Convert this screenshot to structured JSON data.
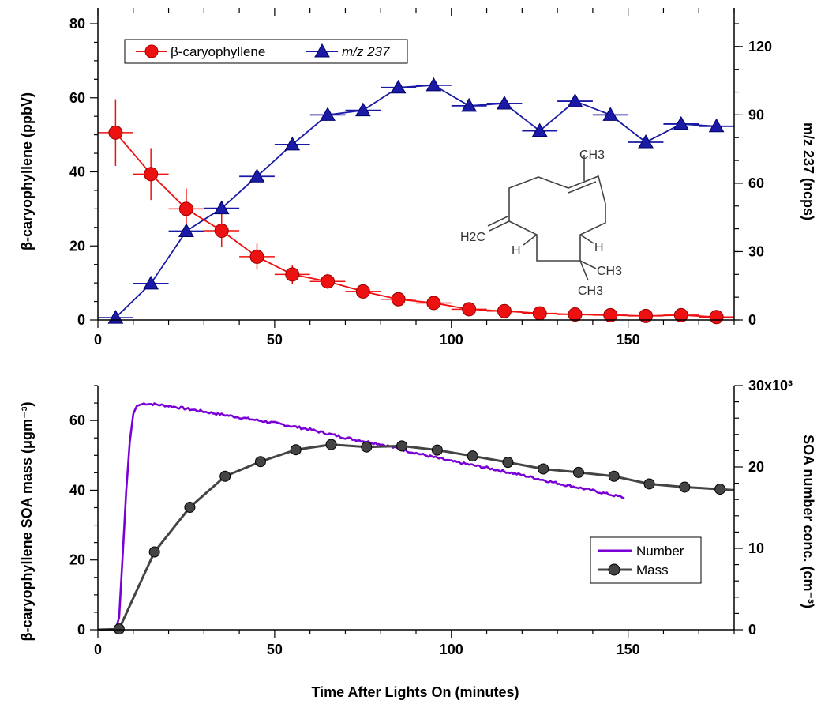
{
  "chart_data": [
    {
      "type": "line",
      "panel": "top",
      "xlim": [
        0,
        180
      ],
      "ylim_left": [
        0,
        80
      ],
      "ylim_right": [
        0,
        130
      ],
      "x_ticks": [
        "0",
        "50",
        "100",
        "150"
      ],
      "y_ticks_left": [
        "0",
        "20",
        "40",
        "60",
        "80"
      ],
      "y_ticks_right": [
        "0",
        "30",
        "60",
        "90",
        "120"
      ],
      "ylabel_left": "β-caryophyllene (ppbV)",
      "ylabel_right": "m/z 237 (ncps)",
      "legend_placement": "top-left",
      "series": [
        {
          "name": "β-caryophyllene",
          "axis": "left",
          "color": "#ee1111",
          "marker": "circle",
          "x": [
            5,
            15,
            25,
            35,
            45,
            55,
            65,
            75,
            85,
            95,
            105,
            115,
            125,
            135,
            145,
            155,
            165,
            175
          ],
          "y": [
            50.6,
            39.4,
            30.0,
            24.1,
            17.1,
            12.3,
            10.4,
            7.7,
            5.6,
            4.6,
            2.9,
            2.4,
            1.8,
            1.5,
            1.3,
            1.1,
            1.3,
            0.8
          ],
          "y_err": [
            9.0,
            7.0,
            5.5,
            4.5,
            3.5,
            2.5,
            2.0,
            1.5,
            1.2,
            1.0,
            0.8,
            0.7,
            0.6,
            0.5,
            0.5,
            0.5,
            0.5,
            0.5
          ],
          "x_err": 5
        },
        {
          "name": "m/z 237",
          "axis": "right",
          "color": "#1a1aa6",
          "marker": "triangle",
          "x": [
            5,
            15,
            25,
            35,
            45,
            55,
            65,
            75,
            85,
            95,
            105,
            115,
            125,
            135,
            145,
            155,
            165,
            175
          ],
          "y": [
            1,
            16,
            39,
            49,
            63,
            77,
            90,
            92,
            102,
            103,
            94,
            95,
            83,
            96,
            90,
            78,
            86,
            85
          ],
          "x_err": 5
        }
      ],
      "structure_labels": {
        "ch3_top": "CH3",
        "h2c": "H2C",
        "h_left": "H",
        "h_right": "H",
        "ch3_mid": "CH3",
        "ch3_bottom": "CH3"
      }
    },
    {
      "type": "line",
      "panel": "bottom",
      "xlim": [
        0,
        180
      ],
      "ylim_left": [
        0,
        70
      ],
      "ylim_right": [
        0,
        30000
      ],
      "x_ticks": [
        "0",
        "50",
        "100",
        "150"
      ],
      "y_ticks_left": [
        "0",
        "20",
        "40",
        "60"
      ],
      "y_ticks_right": [
        "0",
        "10",
        "20",
        "30x10³"
      ],
      "xlabel": "Time After Lights On (minutes)",
      "ylabel_left": "β-caryophyllene SOA mass (μgm⁻³)",
      "ylabel_right": "SOA number conc. (cm⁻³)",
      "legend_placement": "bottom-right",
      "series": [
        {
          "name": "Number",
          "axis": "right",
          "color": "#7a00d6",
          "marker": "none",
          "x": [
            0,
            5,
            6,
            7,
            8,
            9,
            10,
            11,
            13,
            16,
            20,
            30,
            40,
            50,
            60,
            70,
            80,
            90,
            100,
            110,
            120,
            130,
            140,
            149
          ],
          "y": [
            0,
            0,
            1500,
            9000,
            17000,
            23000,
            26500,
            27500,
            27800,
            27700,
            27500,
            26800,
            26100,
            25400,
            24600,
            23600,
            22800,
            21700,
            20700,
            19900,
            19000,
            18000,
            17100,
            16200
          ]
        },
        {
          "name": "Mass",
          "axis": "left",
          "color": "#444444",
          "marker": "circle",
          "x": [
            0,
            6,
            16,
            26,
            36,
            46,
            56,
            66,
            76,
            86,
            96,
            106,
            116,
            126,
            136,
            146,
            156,
            166,
            176,
            180
          ],
          "y": [
            0,
            0.2,
            22.3,
            35.1,
            44.0,
            48.2,
            51.6,
            53.1,
            52.4,
            52.7,
            51.5,
            49.8,
            48.0,
            46.1,
            45.1,
            44.0,
            41.8,
            40.9,
            40.3,
            40.0
          ],
          "marker_count": 18
        }
      ]
    }
  ]
}
